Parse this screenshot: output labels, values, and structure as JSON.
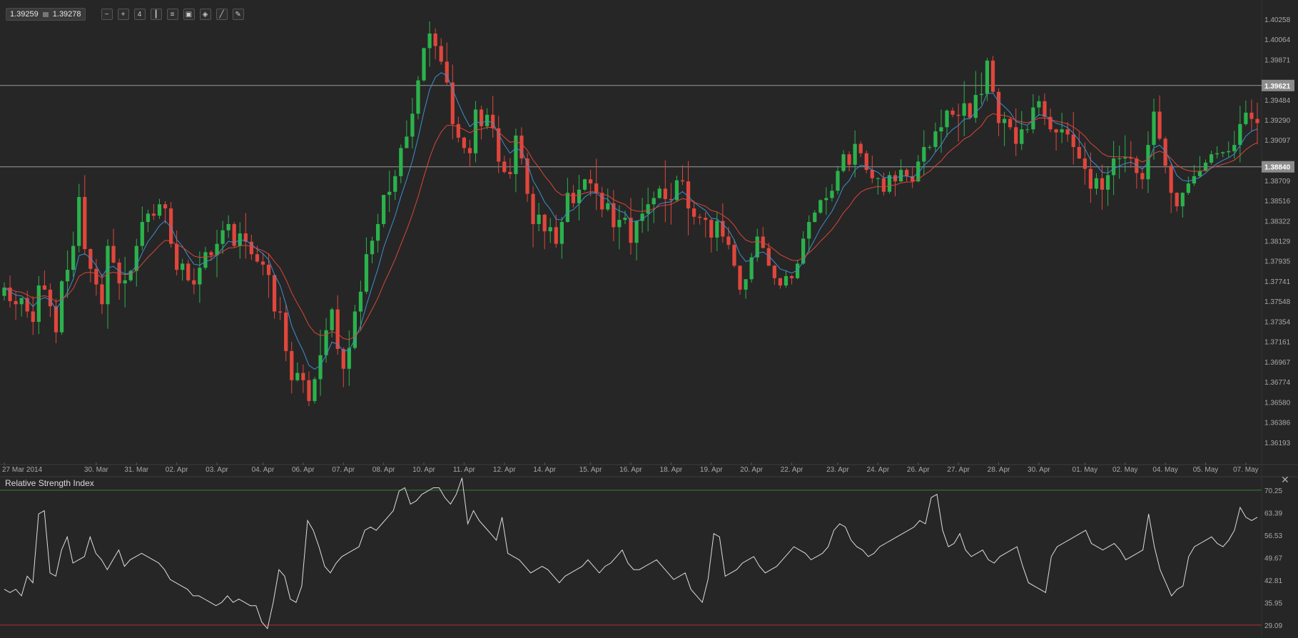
{
  "toolbar": {
    "bid": "1.39259",
    "ask": "1.39278",
    "buttons": [
      {
        "name": "zoom-out-icon",
        "glyph": "−"
      },
      {
        "name": "zoom-in-icon",
        "glyph": "+"
      },
      {
        "name": "timeframe-icon",
        "glyph": "4"
      },
      {
        "name": "candles-icon",
        "glyph": "┃"
      },
      {
        "name": "indicators-icon",
        "glyph": "≡"
      },
      {
        "name": "template-icon",
        "glyph": "▣"
      },
      {
        "name": "objects-icon",
        "glyph": "◈"
      },
      {
        "name": "draw-line-icon",
        "glyph": "╱"
      },
      {
        "name": "pencil-icon",
        "glyph": "✎"
      }
    ]
  },
  "colors": {
    "background": "#262626",
    "bull": "#2bb24c",
    "bear": "#e0463c",
    "ma_fast": "#3d8fd1",
    "ma_slow": "#d9463b",
    "rsi_line": "#dddddd",
    "rsi_upper": "#3f7a3f",
    "rsi_lower": "#b33030",
    "hline": "#9a9a9a",
    "axis_text": "#a8a8a8"
  },
  "chart_data": [
    {
      "type": "candlestick",
      "title": "",
      "ylim": [
        1.36,
        1.4036
      ],
      "y_ticks": [
        "1.40258",
        "1.40064",
        "1.39871",
        "1.39484",
        "1.39290",
        "1.39097",
        "1.38709",
        "1.38516",
        "1.38322",
        "1.38129",
        "1.37935",
        "1.37741",
        "1.37548",
        "1.37354",
        "1.37161",
        "1.36967",
        "1.36774",
        "1.36580",
        "1.36386",
        "1.36193"
      ],
      "x_labels": [
        {
          "label": "27 Mar 2014",
          "index": 0
        },
        {
          "label": "30. Mar",
          "index": 16
        },
        {
          "label": "31. Mar",
          "index": 23
        },
        {
          "label": "02. Apr",
          "index": 30
        },
        {
          "label": "03. Apr",
          "index": 37
        },
        {
          "label": "04. Apr",
          "index": 45
        },
        {
          "label": "06. Apr",
          "index": 52
        },
        {
          "label": "07. Apr",
          "index": 59
        },
        {
          "label": "08. Apr",
          "index": 66
        },
        {
          "label": "10. Apr",
          "index": 73
        },
        {
          "label": "11. Apr",
          "index": 80
        },
        {
          "label": "12. Apr",
          "index": 87
        },
        {
          "label": "14. Apr",
          "index": 94
        },
        {
          "label": "15. Apr",
          "index": 102
        },
        {
          "label": "16. Apr",
          "index": 109
        },
        {
          "label": "18. Apr",
          "index": 116
        },
        {
          "label": "19. Apr",
          "index": 123
        },
        {
          "label": "20. Apr",
          "index": 130
        },
        {
          "label": "22. Apr",
          "index": 137
        },
        {
          "label": "23. Apr",
          "index": 145
        },
        {
          "label": "24. Apr",
          "index": 152
        },
        {
          "label": "26. Apr",
          "index": 159
        },
        {
          "label": "27. Apr",
          "index": 166
        },
        {
          "label": "28. Apr",
          "index": 173
        },
        {
          "label": "30. Apr",
          "index": 180
        },
        {
          "label": "01. May",
          "index": 188
        },
        {
          "label": "02. May",
          "index": 195
        },
        {
          "label": "04. May",
          "index": 202
        },
        {
          "label": "05. May",
          "index": 209
        },
        {
          "label": "07. May",
          "index": 216
        }
      ],
      "hlines": [
        {
          "value": 1.39621,
          "label": "1.39621"
        },
        {
          "value": 1.3884,
          "label": "1.38840"
        }
      ],
      "closes": [
        1.3768,
        1.3755,
        1.3752,
        1.3758,
        1.3745,
        1.3735,
        1.377,
        1.3766,
        1.375,
        1.3725,
        1.3774,
        1.3785,
        1.3808,
        1.3855,
        1.3805,
        1.3786,
        1.3771,
        1.3752,
        1.3808,
        1.3792,
        1.3772,
        1.3775,
        1.3784,
        1.3808,
        1.3831,
        1.3839,
        1.3837,
        1.3848,
        1.3844,
        1.381,
        1.3785,
        1.3791,
        1.3775,
        1.3771,
        1.3787,
        1.3802,
        1.3799,
        1.381,
        1.3823,
        1.3829,
        1.3808,
        1.382,
        1.3812,
        1.38,
        1.3793,
        1.379,
        1.378,
        1.3745,
        1.3744,
        1.3707,
        1.3679,
        1.3686,
        1.3679,
        1.3659,
        1.368,
        1.3703,
        1.3727,
        1.3747,
        1.3709,
        1.369,
        1.371,
        1.3745,
        1.3764,
        1.38,
        1.3813,
        1.3829,
        1.3857,
        1.386,
        1.3875,
        1.3902,
        1.3913,
        1.3935,
        1.3967,
        1.3998,
        1.4012,
        1.4,
        1.3985,
        1.3965,
        1.3925,
        1.3912,
        1.3902,
        1.3897,
        1.3939,
        1.3923,
        1.3934,
        1.3921,
        1.3889,
        1.3879,
        1.3877,
        1.3914,
        1.3892,
        1.3858,
        1.3829,
        1.3838,
        1.3822,
        1.3826,
        1.381,
        1.3831,
        1.3859,
        1.3849,
        1.3862,
        1.3872,
        1.3868,
        1.3859,
        1.3843,
        1.3849,
        1.3826,
        1.3833,
        1.3835,
        1.3811,
        1.3832,
        1.3839,
        1.3848,
        1.3854,
        1.3863,
        1.3853,
        1.3852,
        1.3871,
        1.387,
        1.3844,
        1.3836,
        1.3835,
        1.3833,
        1.3816,
        1.3832,
        1.3817,
        1.3809,
        1.3789,
        1.3766,
        1.3776,
        1.3797,
        1.3817,
        1.3806,
        1.3789,
        1.3777,
        1.377,
        1.3779,
        1.3777,
        1.3791,
        1.3815,
        1.3831,
        1.384,
        1.3852,
        1.3854,
        1.3861,
        1.388,
        1.3896,
        1.3886,
        1.3906,
        1.3897,
        1.3881,
        1.3873,
        1.3873,
        1.386,
        1.3876,
        1.387,
        1.3881,
        1.3875,
        1.387,
        1.3889,
        1.3903,
        1.3903,
        1.3918,
        1.3922,
        1.3938,
        1.3934,
        1.3933,
        1.3945,
        1.3931,
        1.3953,
        1.3954,
        1.3986,
        1.3956,
        1.3926,
        1.393,
        1.3922,
        1.3906,
        1.392,
        1.392,
        1.3941,
        1.3947,
        1.3932,
        1.392,
        1.3917,
        1.392,
        1.3915,
        1.3903,
        1.3892,
        1.3882,
        1.3863,
        1.3873,
        1.3862,
        1.3876,
        1.3892,
        1.3892,
        1.3893,
        1.3892,
        1.3878,
        1.3872,
        1.3905,
        1.3937,
        1.3911,
        1.3885,
        1.3859,
        1.3846,
        1.3859,
        1.3868,
        1.3875,
        1.388,
        1.3888,
        1.3896,
        1.3897,
        1.3898,
        1.3899,
        1.3905,
        1.3925,
        1.3936,
        1.393,
        1.3926
      ]
    },
    {
      "type": "line",
      "title": "Relative Strength Index",
      "ylim": [
        26.0,
        73.5
      ],
      "y_ticks": [
        "70.25",
        "63.39",
        "56.53",
        "49.67",
        "42.81",
        "35.95",
        "29.09"
      ],
      "levels": [
        70.25,
        29.09
      ],
      "values": [
        40,
        39,
        40,
        38,
        44,
        42,
        63,
        64,
        45,
        44,
        52,
        56,
        48,
        49,
        50,
        56,
        51,
        49,
        46,
        49,
        52,
        47,
        49,
        50,
        51,
        50,
        49,
        48,
        46,
        43,
        42,
        41,
        40,
        38,
        38,
        37,
        36,
        35,
        36,
        38,
        36,
        37,
        36,
        35,
        35,
        30,
        28,
        36,
        46,
        44,
        37,
        36,
        41,
        61,
        58,
        53,
        47,
        45,
        48,
        50,
        51,
        52,
        53,
        58,
        59,
        58,
        60,
        62,
        64,
        70,
        71,
        66,
        67,
        69,
        70,
        71,
        71,
        68,
        66,
        69,
        74,
        60,
        64,
        61,
        59,
        57,
        55,
        62,
        51,
        50,
        49,
        47,
        45,
        46,
        47,
        46,
        44,
        42,
        44,
        45,
        46,
        47,
        49,
        47,
        45,
        47,
        48,
        50,
        52,
        48,
        46,
        46,
        47,
        48,
        49,
        47,
        45,
        43,
        44,
        45,
        40,
        38,
        36,
        43,
        57,
        56,
        44,
        45,
        46,
        48,
        49,
        50,
        47,
        45,
        46,
        47,
        49,
        51,
        53,
        52,
        51,
        49,
        50,
        51,
        53,
        58,
        60,
        59,
        55,
        53,
        52,
        50,
        51,
        53,
        54,
        55,
        56,
        57,
        58,
        59,
        61,
        60,
        68,
        69,
        58,
        53,
        54,
        57,
        52,
        50,
        51,
        52,
        49,
        48,
        50,
        51,
        52,
        53,
        47,
        42,
        41,
        40,
        39,
        50,
        53,
        54,
        55,
        56,
        57,
        58,
        54,
        53,
        52,
        53,
        54,
        52,
        49,
        50,
        51,
        52,
        63,
        53,
        46,
        42,
        38,
        40,
        41,
        50,
        53,
        54,
        55,
        56,
        54,
        53,
        55,
        58,
        65,
        62,
        61,
        62
      ]
    }
  ]
}
